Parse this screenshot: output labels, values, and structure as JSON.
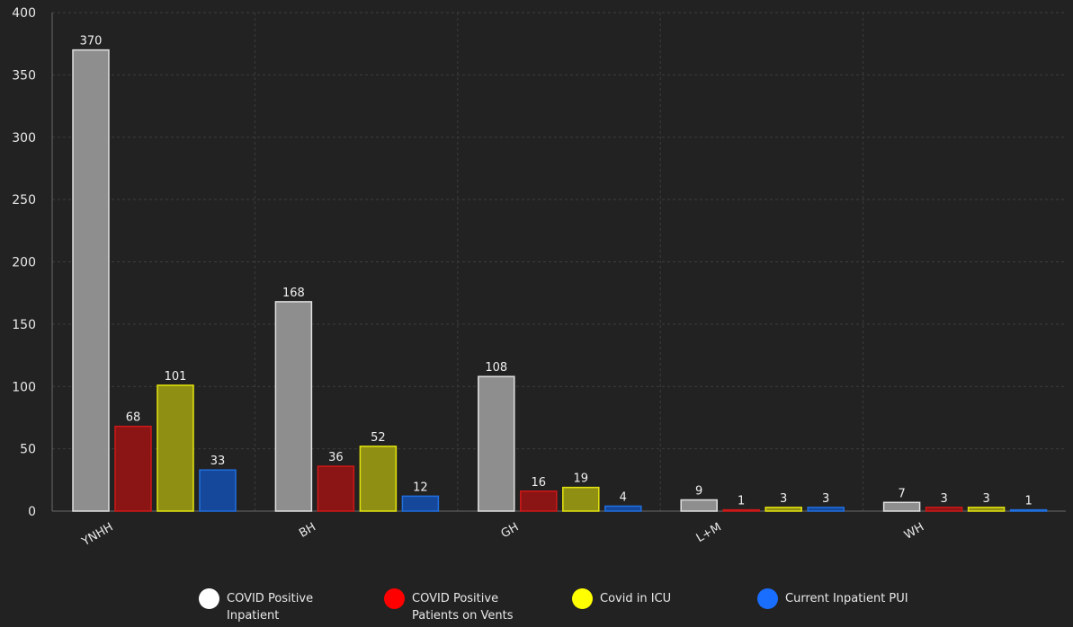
{
  "chart_data": {
    "type": "bar",
    "categories": [
      "YNHH",
      "BH",
      "GH",
      "L+M",
      "WH"
    ],
    "series": [
      {
        "name": "COVID Positive Inpatient",
        "values": [
          370,
          168,
          108,
          9,
          7
        ],
        "color": "#8e8e8e",
        "stroke": "#e0e0e0"
      },
      {
        "name": "COVID Positive Patients on Vents",
        "values": [
          68,
          36,
          16,
          1,
          3
        ],
        "color": "#8b1414",
        "stroke": "#d01818"
      },
      {
        "name": "Covid in ICU",
        "values": [
          101,
          52,
          19,
          3,
          3
        ],
        "color": "#8f8f14",
        "stroke": "#e4e40e"
      },
      {
        "name": "Current Inpatient PUI",
        "values": [
          33,
          12,
          4,
          3,
          1
        ],
        "color": "#15489a",
        "stroke": "#1f6fe0"
      }
    ],
    "ylim": [
      0,
      400
    ],
    "yticks": [
      0,
      50,
      100,
      150,
      200,
      250,
      300,
      350,
      400
    ],
    "grid": true,
    "legend_position": "bottom",
    "data_labels": true
  },
  "legend": {
    "items": [
      {
        "label": "COVID Positive Inpatient",
        "color": "#ffffff"
      },
      {
        "label": "COVID Positive Patients on Vents",
        "color": "#ff0000"
      },
      {
        "label": "Covid in ICU",
        "color": "#ffff00"
      },
      {
        "label": "Current Inpatient PUI",
        "color": "#1a6eff"
      }
    ]
  }
}
